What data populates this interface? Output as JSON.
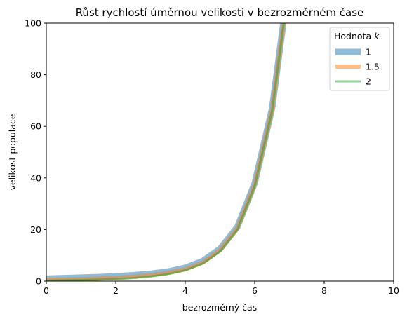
{
  "chart_data": {
    "type": "line",
    "title": "Růst rychlostí úměrnou velikosti v bezrozměrném čase",
    "xlabel": "bezrozměrný čas",
    "ylabel": "velikost populace",
    "xlim": [
      0,
      10
    ],
    "ylim": [
      0,
      100
    ],
    "xticks": [
      "0",
      "2",
      "4",
      "6",
      "8",
      "10"
    ],
    "yticks": [
      "0",
      "20",
      "40",
      "60",
      "80",
      "100"
    ],
    "grid": false,
    "legend": {
      "title_prefix": "Hodnota ",
      "title_var": "k",
      "placement": "top-right"
    },
    "x": [
      0,
      0.5,
      1,
      1.5,
      2,
      2.5,
      3,
      3.5,
      4,
      4.5,
      5,
      5.5,
      6,
      6.5,
      7
    ],
    "series": [
      {
        "name": "1",
        "color": "#1f77b4",
        "values": [
          1.0,
          1.2,
          1.4,
          1.6,
          1.9,
          2.3,
          2.9,
          3.7,
          5.2,
          7.8,
          12.5,
          21.0,
          38.0,
          67.0,
          118.0
        ]
      },
      {
        "name": "1.5",
        "color": "#ff7f0e",
        "values": [
          0.5,
          0.6,
          0.8,
          1.0,
          1.3,
          1.7,
          2.3,
          3.2,
          4.6,
          7.2,
          12.0,
          20.5,
          37.5,
          66.5,
          117.5
        ]
      },
      {
        "name": "2",
        "color": "#2ca02c",
        "values": [
          0.2,
          0.3,
          0.4,
          0.6,
          0.8,
          1.2,
          1.8,
          2.7,
          4.2,
          6.8,
          11.5,
          20.0,
          37.0,
          66.0,
          117.0
        ]
      }
    ]
  }
}
